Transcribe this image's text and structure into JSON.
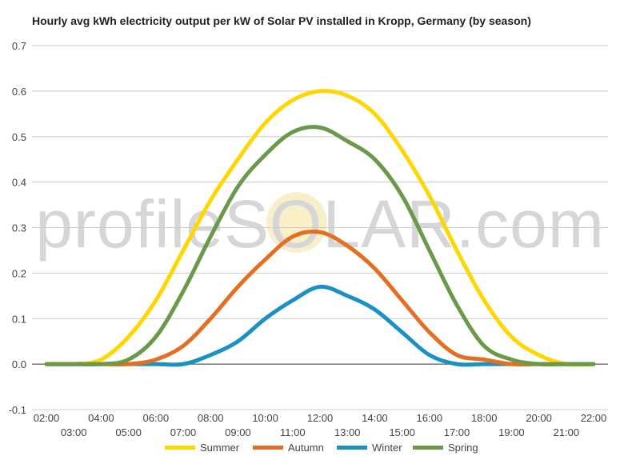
{
  "title": "Hourly avg kWh electricity output per kW of Solar PV installed in Kropp, Germany (by season)",
  "watermark": "profileSOLAR.com",
  "colors": {
    "Summer": "#FFD700",
    "Autumn": "#E46F23",
    "Winter": "#1B90C2",
    "Spring": "#6A994A",
    "grid": "#cccccc",
    "zero": "#333333"
  },
  "chart_data": {
    "type": "line",
    "title": "Hourly avg kWh electricity output per kW of Solar PV installed in Kropp, Germany (by season)",
    "xlabel": "",
    "ylabel": "",
    "ylim": [
      -0.1,
      0.7
    ],
    "yticks": [
      "-0.1",
      "0.0",
      "0.1",
      "0.2",
      "0.3",
      "0.4",
      "0.5",
      "0.6",
      "0.7"
    ],
    "x": [
      "02:00",
      "03:00",
      "04:00",
      "05:00",
      "06:00",
      "07:00",
      "08:00",
      "09:00",
      "10:00",
      "11:00",
      "12:00",
      "13:00",
      "14:00",
      "15:00",
      "16:00",
      "17:00",
      "18:00",
      "19:00",
      "20:00",
      "21:00",
      "22:00"
    ],
    "grid": true,
    "legend": "bottom",
    "series": [
      {
        "name": "Summer",
        "values": [
          0,
          0,
          0.01,
          0.06,
          0.14,
          0.25,
          0.36,
          0.45,
          0.53,
          0.58,
          0.6,
          0.59,
          0.55,
          0.47,
          0.37,
          0.25,
          0.14,
          0.06,
          0.02,
          0,
          0
        ]
      },
      {
        "name": "Autumn",
        "values": [
          0,
          0,
          0,
          0,
          0.01,
          0.04,
          0.1,
          0.17,
          0.23,
          0.28,
          0.29,
          0.26,
          0.21,
          0.14,
          0.07,
          0.02,
          0.01,
          0,
          0,
          0,
          0
        ]
      },
      {
        "name": "Winter",
        "values": [
          0,
          0,
          0,
          0,
          0,
          0,
          0.02,
          0.05,
          0.1,
          0.14,
          0.17,
          0.15,
          0.12,
          0.07,
          0.02,
          0,
          0,
          0,
          0,
          0,
          0
        ]
      },
      {
        "name": "Spring",
        "values": [
          0,
          0,
          0,
          0.01,
          0.06,
          0.16,
          0.28,
          0.39,
          0.46,
          0.51,
          0.52,
          0.49,
          0.45,
          0.37,
          0.25,
          0.13,
          0.04,
          0.01,
          0,
          0,
          0
        ]
      }
    ]
  }
}
